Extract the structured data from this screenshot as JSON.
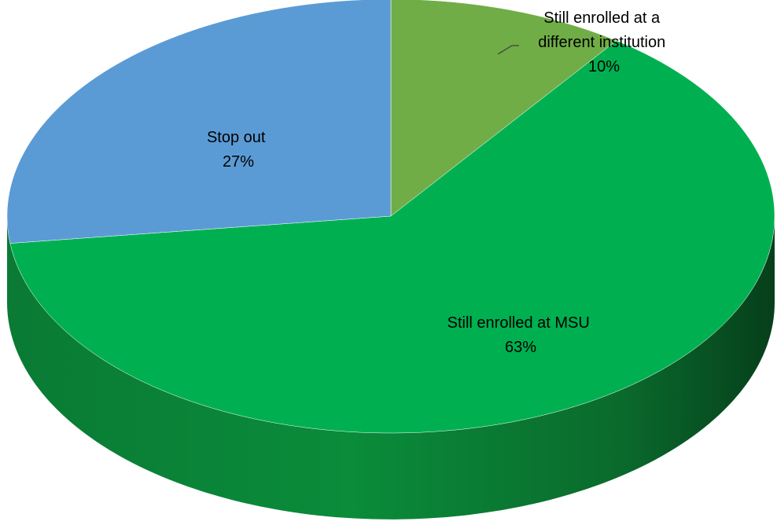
{
  "chart_data": {
    "type": "pie",
    "style": "3d",
    "title": "",
    "slices": [
      {
        "label": "Still enrolled at a different institution",
        "label_lines": [
          "Still enrolled at a",
          "different institution"
        ],
        "percent_label": "10%",
        "value": 10,
        "color": "#70AD47"
      },
      {
        "label": "Still enrolled at MSU",
        "label_lines": [
          "Still enrolled at MSU"
        ],
        "percent_label": "63%",
        "value": 63,
        "color": "#00B050"
      },
      {
        "label": "Stop out",
        "label_lines": [
          "Stop out"
        ],
        "percent_label": "27%",
        "value": 27,
        "color": "#5B9BD5"
      }
    ],
    "legend": "none",
    "label_placement": "on-slice"
  }
}
